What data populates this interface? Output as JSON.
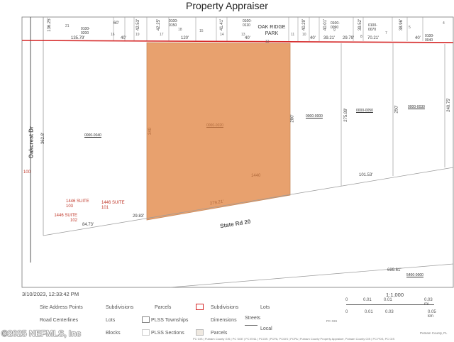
{
  "header": {
    "title": "Property Appraiser"
  },
  "map": {
    "street_labels": {
      "west": "Oakcrest Dr",
      "south": "State Rd 20"
    },
    "subdivision_label": "OAK RIDGE PARK",
    "top_dims": [
      "136.25'",
      "135.79'",
      "60'",
      "40'",
      "42.53'",
      "42.25'",
      "120'",
      "41.41'",
      "40'",
      "40.29'",
      "40'",
      "40.01'",
      "39.21'",
      "39.52'",
      "29.79'",
      "70.21'",
      "38.96'",
      "40'"
    ],
    "top_parcel_ids": [
      "0100-0200",
      "0100-0150",
      "0100-0110",
      "0100-0090",
      "0100-0070",
      "0100-0040"
    ],
    "lot_numbers": [
      "21",
      "16",
      "19",
      "17",
      "18",
      "15",
      "14",
      "13",
      "12",
      "11",
      "10",
      "9",
      "8",
      "7",
      "5",
      "4"
    ],
    "west_parcel": {
      "id": "0000-0040",
      "dim": "362.8'"
    },
    "selected_parcel": {
      "id": "0000-0020",
      "dim_side": "340",
      "dim_right": "1440",
      "dim_bottom": "279.21'"
    },
    "east_parcels": [
      {
        "id": "0000-0000",
        "dim": "280'"
      },
      {
        "id": "0000-0050",
        "dim": "275.89'"
      },
      {
        "id": "0000-0030",
        "dim": "250'",
        "dim_right": "240.75'"
      }
    ],
    "misc_dims": {
      "left_edge": "100",
      "frontage_a": "84.73'",
      "frontage_b": "29.83'",
      "frontage_c": "101.53'",
      "bottom": "699.61'",
      "bottom_id": "5400-0000"
    },
    "addresses": [
      "1446 SUITE 103",
      "1446 SUITE 101",
      "1446 SUITE 102"
    ]
  },
  "timestamp": "3/10/2023, 12:33:42 PM",
  "scale": {
    "ratio": "1:1,000",
    "top_ticks": [
      "0",
      "0.01",
      "0.01",
      "0.03 mi"
    ],
    "bottom_ticks": [
      "0",
      "0.01",
      "0.03",
      "0.05 km"
    ]
  },
  "legend": {
    "col1": [
      "Site Address Points",
      "Road Centerlines",
      "Blocks"
    ],
    "col2": [
      "Subdivisions",
      "Lots",
      "PLSS Townships",
      "PLSS Sections"
    ],
    "col3": [
      "Parcels",
      "Subdivisions",
      "Dimensions",
      "Parcels",
      "Lots",
      "Streets",
      "Local"
    ]
  },
  "footer": {
    "attribution": "PC GIS | Putnam County GIS | PC SOE | PC E911 | PCGIS | PCPA, PCGIS | PCPA | Putnam County Property Appraiser, Putnam County GIS | PC PDS, PC GIS",
    "source": "Putnam County, FL",
    "pc_gis": "PC GIS",
    "watermark": "©2025 NEFMLS, Inc"
  },
  "colors": {
    "selected_fill": "#E8A16E",
    "subdivision_line": "#D62A2A",
    "parcel_line": "#8C8C8C",
    "label_red": "#C0392B"
  }
}
